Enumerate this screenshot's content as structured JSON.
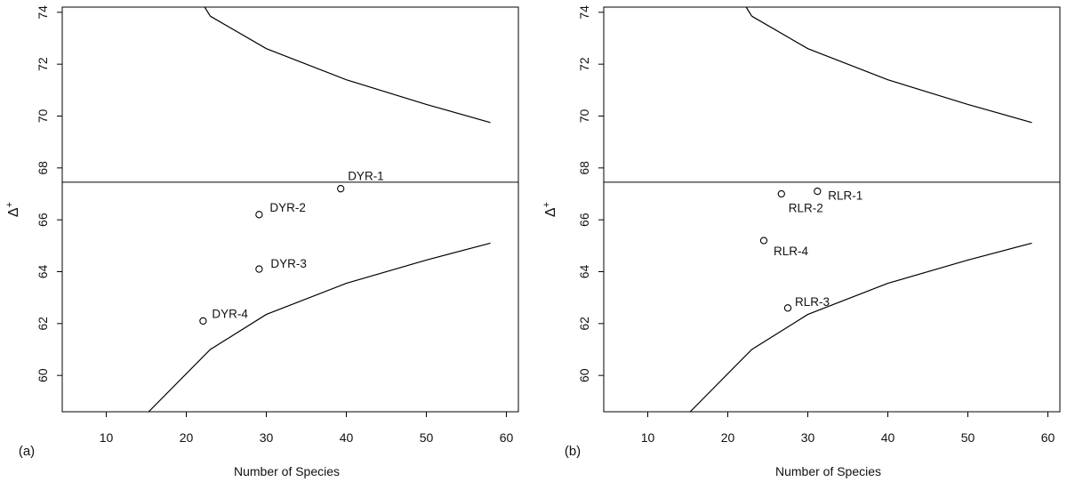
{
  "chart_data": [
    {
      "type": "scatter",
      "panel_label": "(a)",
      "xlabel": "Number of Species",
      "ylabel": "Δ",
      "ylabel_superscript": "+",
      "xlim": [
        4.5,
        61.5
      ],
      "ylim": [
        58.6,
        74.2
      ],
      "xticks": [
        10,
        20,
        30,
        40,
        50,
        60
      ],
      "yticks": [
        60,
        62,
        64,
        66,
        68,
        70,
        72,
        74
      ],
      "mean_line": 67.45,
      "upper_funnel": {
        "x": [
          23.0,
          30,
          40,
          50,
          58
        ],
        "y": [
          73.85,
          72.6,
          71.4,
          70.45,
          69.75
        ]
      },
      "lower_funnel": {
        "x": [
          15.3,
          23.0,
          30,
          40,
          50,
          58
        ],
        "y": [
          58.6,
          61.0,
          62.35,
          63.55,
          64.45,
          65.1
        ]
      },
      "upper_funnel_lead": {
        "x": [
          22.3,
          23.0
        ],
        "y": [
          74.2,
          73.85
        ]
      },
      "points": [
        {
          "label": "DYR-1",
          "x": 39.3,
          "y": 67.2
        },
        {
          "label": "DYR-2",
          "x": 29.1,
          "y": 66.2
        },
        {
          "label": "DYR-3",
          "x": 29.1,
          "y": 64.1
        },
        {
          "label": "DYR-4",
          "x": 22.1,
          "y": 62.1
        }
      ]
    },
    {
      "type": "scatter",
      "panel_label": "(b)",
      "xlabel": "Number of Species",
      "ylabel": "Δ",
      "ylabel_superscript": "+",
      "xlim": [
        4.5,
        61.5
      ],
      "ylim": [
        58.6,
        74.2
      ],
      "xticks": [
        10,
        20,
        30,
        40,
        50,
        60
      ],
      "yticks": [
        60,
        62,
        64,
        66,
        68,
        70,
        72,
        74
      ],
      "mean_line": 67.45,
      "upper_funnel": {
        "x": [
          23.0,
          30,
          40,
          50,
          58
        ],
        "y": [
          73.85,
          72.6,
          71.4,
          70.45,
          69.75
        ]
      },
      "lower_funnel": {
        "x": [
          15.3,
          23.0,
          30,
          40,
          50,
          58
        ],
        "y": [
          58.6,
          61.0,
          62.35,
          63.55,
          64.45,
          65.1
        ]
      },
      "upper_funnel_lead": {
        "x": [
          22.3,
          23.0
        ],
        "y": [
          74.2,
          73.85
        ]
      },
      "points": [
        {
          "label": "RLR-1",
          "x": 31.2,
          "y": 67.1
        },
        {
          "label": "RLR-2",
          "x": 26.7,
          "y": 67.0
        },
        {
          "label": "RLR-4",
          "x": 24.5,
          "y": 65.2
        },
        {
          "label": "RLR-3",
          "x": 27.5,
          "y": 62.6
        }
      ]
    }
  ]
}
